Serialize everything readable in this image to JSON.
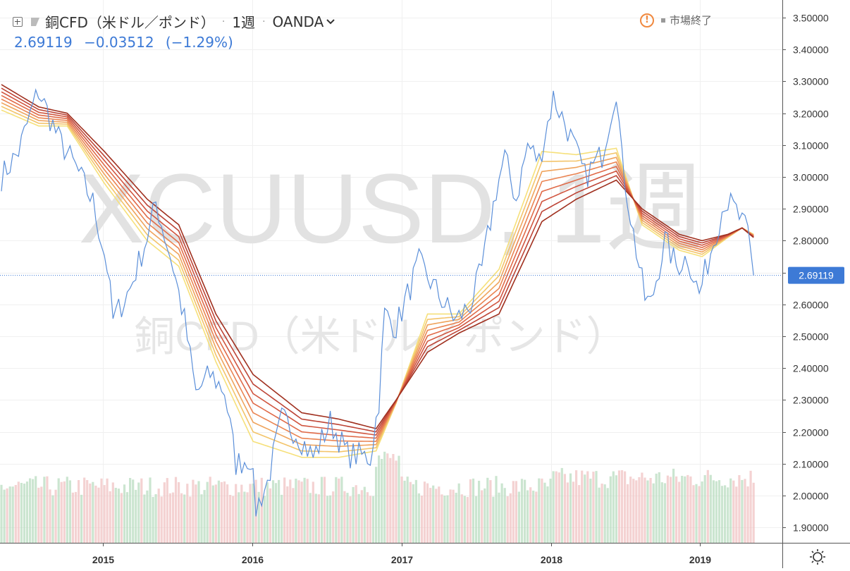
{
  "header": {
    "symbol_title": "銅CFD（米ドル／ポンド）",
    "interval": "1週",
    "broker": "OANDA",
    "last_price": "2.69119",
    "change": "−0.03512",
    "change_pct": "(−1.29%)",
    "market_status": "市場終了"
  },
  "watermark": {
    "line1": "XCUUSD, 1週",
    "line2": "銅CFD（米ドル／ポンド）"
  },
  "colors": {
    "price_line": "#5b8fd9",
    "last_label_bg": "#3d7ad6",
    "vol_up": "#b9dcc0",
    "vol_down": "#f0c3c3",
    "ribbon": [
      "#f6e07a",
      "#f3c46a",
      "#efa35c",
      "#ea8452",
      "#e06a48",
      "#d15640",
      "#bd4436",
      "#a0301f"
    ],
    "warning": "#f0883e"
  },
  "chart_data": {
    "type": "line",
    "title": "銅CFD（米ドル／ポンド）",
    "x_start": "2014-04-27",
    "interval_weeks": 1,
    "xlabel": "",
    "ylabel": "",
    "x_ticks": [
      "2015",
      "2016",
      "2017",
      "2018",
      "2019"
    ],
    "y_ticks": [
      "1.90000",
      "2.00000",
      "2.10000",
      "2.20000",
      "2.30000",
      "2.40000",
      "2.50000",
      "2.60000",
      "2.70000",
      "2.80000",
      "2.90000",
      "3.00000",
      "3.10000",
      "3.20000",
      "3.30000",
      "3.40000",
      "3.50000"
    ],
    "ylim": [
      1.84,
      3.54
    ],
    "grid": true,
    "last_price": 2.69119,
    "price_anchors": [
      [
        "2014-04-27",
        3.0
      ],
      [
        "2014-06-08",
        3.08
      ],
      [
        "2014-07-13",
        3.22
      ],
      [
        "2014-07-27",
        3.27
      ],
      [
        "2014-09-14",
        3.12
      ],
      [
        "2014-10-26",
        3.03
      ],
      [
        "2014-12-07",
        2.92
      ],
      [
        "2015-01-11",
        2.72
      ],
      [
        "2015-01-25",
        2.55
      ],
      [
        "2015-03-08",
        2.65
      ],
      [
        "2015-04-26",
        2.84
      ],
      [
        "2015-05-10",
        2.92
      ],
      [
        "2015-06-21",
        2.72
      ],
      [
        "2015-07-19",
        2.55
      ],
      [
        "2015-08-16",
        2.32
      ],
      [
        "2015-09-20",
        2.38
      ],
      [
        "2015-10-25",
        2.33
      ],
      [
        "2015-11-22",
        2.1
      ],
      [
        "2015-12-27",
        2.12
      ],
      [
        "2016-01-10",
        1.96
      ],
      [
        "2016-02-07",
        2.04
      ],
      [
        "2016-03-13",
        2.24
      ],
      [
        "2016-04-17",
        2.2
      ],
      [
        "2016-05-29",
        2.12
      ],
      [
        "2016-07-10",
        2.23
      ],
      [
        "2016-08-21",
        2.13
      ],
      [
        "2016-10-16",
        2.12
      ],
      [
        "2016-11-06",
        2.3
      ],
      [
        "2016-11-20",
        2.57
      ],
      [
        "2016-12-18",
        2.53
      ],
      [
        "2017-02-12",
        2.73
      ],
      [
        "2017-04-16",
        2.6
      ],
      [
        "2017-05-14",
        2.55
      ],
      [
        "2017-06-18",
        2.6
      ],
      [
        "2017-07-16",
        2.71
      ],
      [
        "2017-08-20",
        2.96
      ],
      [
        "2017-09-10",
        3.06
      ],
      [
        "2017-10-08",
        2.93
      ],
      [
        "2017-11-05",
        3.1
      ],
      [
        "2017-12-03",
        3.05
      ],
      [
        "2018-01-07",
        3.25
      ],
      [
        "2018-02-11",
        3.15
      ],
      [
        "2018-03-25",
        3.0
      ],
      [
        "2018-05-06",
        3.07
      ],
      [
        "2018-06-10",
        3.28
      ],
      [
        "2018-06-24",
        3.05
      ],
      [
        "2018-07-22",
        2.82
      ],
      [
        "2018-08-19",
        2.62
      ],
      [
        "2018-09-02",
        2.6
      ],
      [
        "2018-10-07",
        2.8
      ],
      [
        "2018-11-04",
        2.72
      ],
      [
        "2018-12-02",
        2.75
      ],
      [
        "2018-12-30",
        2.63
      ],
      [
        "2019-02-03",
        2.8
      ],
      [
        "2019-03-03",
        2.93
      ],
      [
        "2019-03-31",
        2.89
      ],
      [
        "2019-04-28",
        2.82
      ],
      [
        "2019-05-12",
        2.69119
      ]
    ],
    "ribbon_anchors": [
      [
        "2014-04-27",
        3.21,
        3.29
      ],
      [
        "2014-07-27",
        3.16,
        3.22
      ],
      [
        "2014-10-05",
        3.16,
        3.2
      ],
      [
        "2015-01-04",
        2.98,
        3.08
      ],
      [
        "2015-04-19",
        2.8,
        2.93
      ],
      [
        "2015-07-05",
        2.72,
        2.85
      ],
      [
        "2015-10-04",
        2.42,
        2.57
      ],
      [
        "2016-01-03",
        2.17,
        2.38
      ],
      [
        "2016-05-01",
        2.12,
        2.26
      ],
      [
        "2016-07-31",
        2.12,
        2.24
      ],
      [
        "2016-10-30",
        2.14,
        2.21
      ],
      [
        "2016-12-18",
        2.29,
        2.3
      ],
      [
        "2017-03-05",
        2.57,
        2.45
      ],
      [
        "2017-05-21",
        2.57,
        2.51
      ],
      [
        "2017-08-27",
        2.71,
        2.57
      ],
      [
        "2017-12-10",
        3.08,
        2.86
      ],
      [
        "2018-03-04",
        3.07,
        2.93
      ],
      [
        "2018-06-10",
        3.09,
        2.99
      ],
      [
        "2018-08-12",
        2.85,
        2.9
      ],
      [
        "2018-11-11",
        2.77,
        2.82
      ],
      [
        "2019-01-06",
        2.75,
        2.8
      ],
      [
        "2019-03-10",
        2.81,
        2.82
      ],
      [
        "2019-04-14",
        2.84,
        2.84
      ],
      [
        "2019-05-12",
        2.82,
        2.81
      ]
    ],
    "ribbon_series_count": 8
  }
}
